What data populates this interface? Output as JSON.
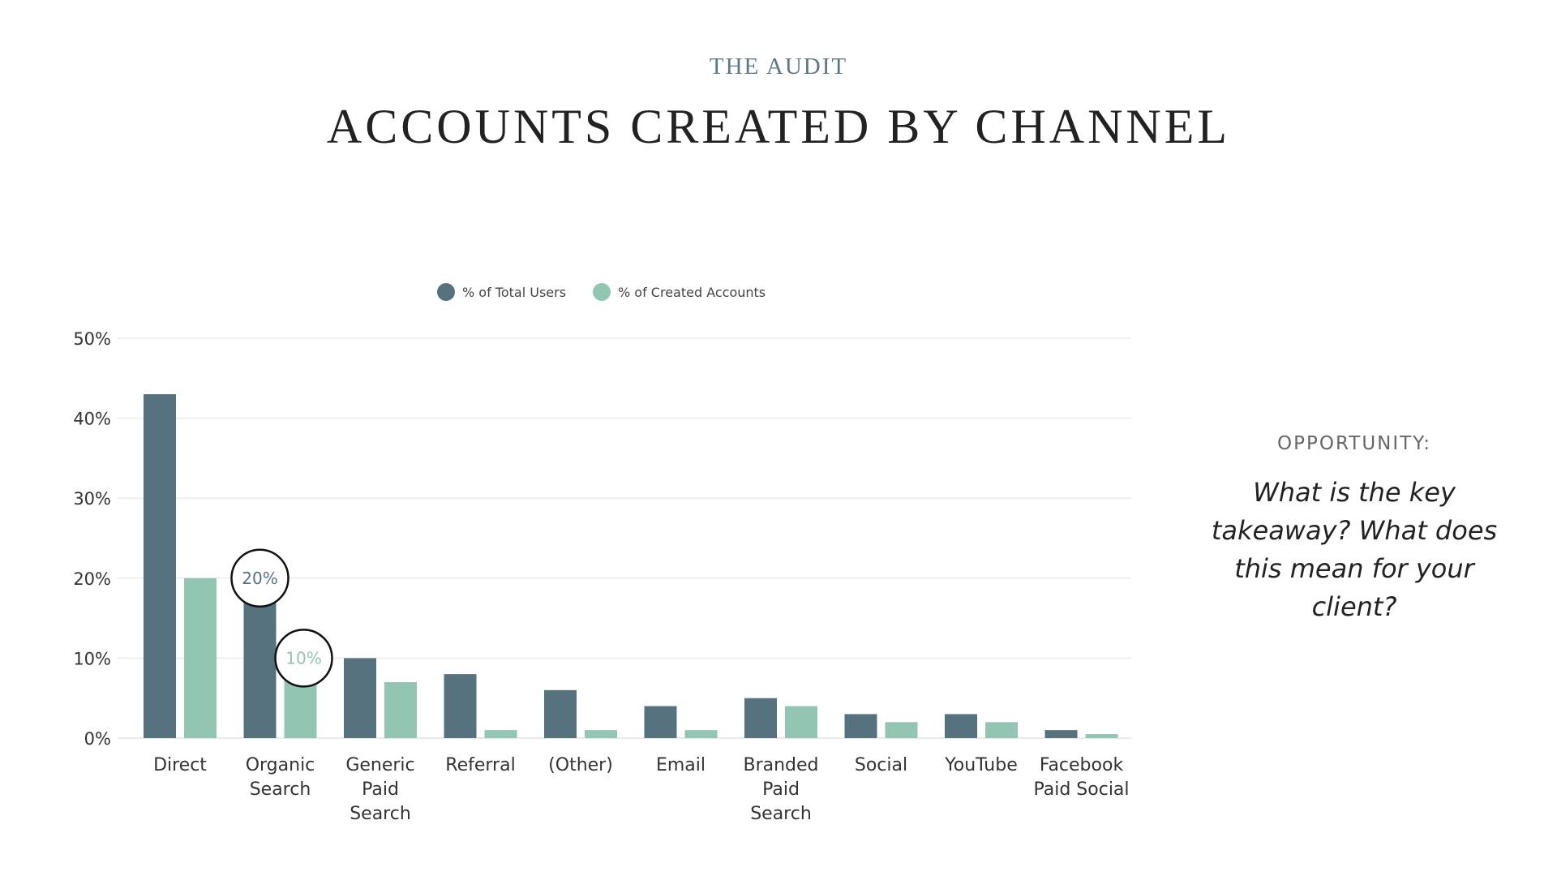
{
  "header": {
    "eyebrow": "THE AUDIT",
    "title": "ACCOUNTS CREATED BY CHANNEL"
  },
  "sidebar": {
    "heading": "OPPORTUNITY:",
    "body": "What is the key takeaway? What does this mean for your client?"
  },
  "chart_data": {
    "type": "bar",
    "title": "",
    "xlabel": "",
    "ylabel": "",
    "ylim": [
      0,
      50
    ],
    "y_ticks": [
      "0%",
      "10%",
      "20%",
      "30%",
      "40%",
      "50%"
    ],
    "grid": true,
    "legend_position": "top",
    "categories": [
      [
        "Direct"
      ],
      [
        "Organic",
        "Search"
      ],
      [
        "Generic",
        "Paid",
        "Search"
      ],
      [
        "Referral"
      ],
      [
        "(Other)"
      ],
      [
        "Email"
      ],
      [
        "Branded",
        "Paid",
        "Search"
      ],
      [
        "Social"
      ],
      [
        "YouTube"
      ],
      [
        "Facebook",
        "Paid Social"
      ]
    ],
    "series": [
      {
        "name": "% of Total Users",
        "color": "#56727f",
        "values": [
          43,
          20,
          10,
          8,
          6,
          4,
          5,
          3,
          3,
          1
        ]
      },
      {
        "name": "% of Created Accounts",
        "color": "#93c5b3",
        "values": [
          20,
          10,
          7,
          1,
          1,
          1,
          4,
          2,
          2,
          0.5
        ]
      }
    ],
    "annotations": [
      {
        "text": "20%",
        "category_index": 1,
        "series_index": 0,
        "value": 20,
        "color": "#56727f"
      },
      {
        "text": "10%",
        "category_index": 1,
        "series_index": 1,
        "value": 10,
        "color": "#93c5b3"
      }
    ]
  }
}
